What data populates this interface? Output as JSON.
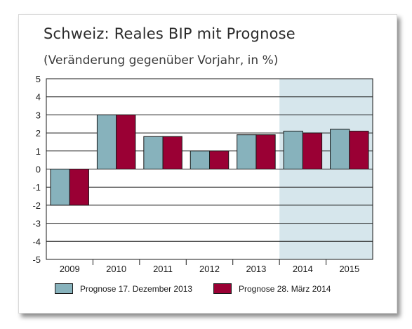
{
  "title": "Schweiz: Reales BIP mit Prognose",
  "subtitle": "(Veränderung gegenüber Vorjahr, in %)",
  "colors": {
    "series1": "#87b2bc",
    "series2": "#9a0034",
    "forecast_band": "#d6e6ec",
    "grid": "#1a1a1a"
  },
  "chart_data": {
    "type": "bar",
    "categories": [
      "2009",
      "2010",
      "2011",
      "2012",
      "2013",
      "2014",
      "2015"
    ],
    "series": [
      {
        "name": "Prognose 17. Dezember 2013",
        "values": [
          -2.0,
          3.0,
          1.8,
          1.0,
          1.9,
          2.1,
          2.2
        ]
      },
      {
        "name": "Prognose 28. März 2014",
        "values": [
          -2.0,
          3.0,
          1.8,
          1.0,
          1.9,
          2.0,
          2.1
        ]
      }
    ],
    "ylim": [
      -5,
      5
    ],
    "yticks": [
      "5",
      "4",
      "3",
      "2",
      "1",
      "0",
      "-1",
      "-2",
      "-3",
      "-4",
      "-5"
    ],
    "forecast_categories": [
      "2014",
      "2015"
    ],
    "grid": true,
    "legend_position": "bottom"
  }
}
